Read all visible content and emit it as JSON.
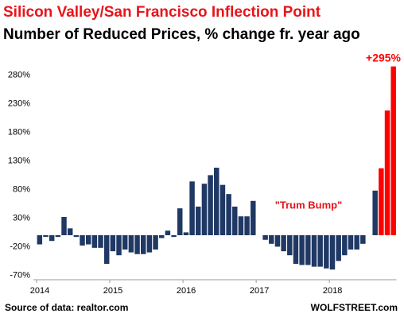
{
  "chart_data": {
    "type": "bar",
    "title": "Silicon Valley/San Francisco Inflection Point",
    "subtitle": "Number of Reduced Prices, % change fr. year ago",
    "source": "Source of data: realtor.com",
    "credit": "WOLFSTREET.com",
    "annotations": [
      "+295%",
      "\"Trum Bump\""
    ],
    "categories": [
      "2014",
      null,
      null,
      null,
      null,
      null,
      null,
      null,
      null,
      null,
      null,
      null,
      "2015",
      null,
      null,
      null,
      null,
      null,
      null,
      null,
      null,
      null,
      null,
      null,
      "2016",
      null,
      null,
      null,
      null,
      null,
      null,
      null,
      null,
      null,
      null,
      null,
      "2017",
      null,
      null,
      null,
      null,
      null,
      null,
      null,
      null,
      null,
      null,
      null,
      "2018",
      null,
      null,
      null,
      null,
      null,
      null,
      null,
      null,
      null,
      null
    ],
    "values": [
      -16,
      -3,
      -10,
      -3,
      32,
      12,
      -3,
      -18,
      -16,
      -22,
      -22,
      -50,
      -28,
      -35,
      -25,
      -30,
      -33,
      -33,
      -30,
      -25,
      -5,
      8,
      -3,
      47,
      5,
      94,
      50,
      90,
      105,
      118,
      88,
      72,
      50,
      33,
      33,
      60,
      0,
      -8,
      -15,
      -20,
      -28,
      -35,
      -50,
      -52,
      -52,
      -55,
      -55,
      -58,
      -60,
      -45,
      -35,
      -25,
      -25,
      -15,
      0,
      78,
      117,
      218,
      295
    ],
    "colors": [
      "#1f3864",
      "#1f3864",
      "#1f3864",
      "#1f3864",
      "#1f3864",
      "#1f3864",
      "#1f3864",
      "#1f3864",
      "#1f3864",
      "#1f3864",
      "#1f3864",
      "#1f3864",
      "#1f3864",
      "#1f3864",
      "#1f3864",
      "#1f3864",
      "#1f3864",
      "#1f3864",
      "#1f3864",
      "#1f3864",
      "#1f3864",
      "#1f3864",
      "#1f3864",
      "#1f3864",
      "#1f3864",
      "#1f3864",
      "#1f3864",
      "#1f3864",
      "#1f3864",
      "#1f3864",
      "#1f3864",
      "#1f3864",
      "#1f3864",
      "#1f3864",
      "#1f3864",
      "#1f3864",
      "#1f3864",
      "#1f3864",
      "#1f3864",
      "#1f3864",
      "#1f3864",
      "#1f3864",
      "#1f3864",
      "#1f3864",
      "#1f3864",
      "#1f3864",
      "#1f3864",
      "#1f3864",
      "#1f3864",
      "#1f3864",
      "#1f3864",
      "#1f3864",
      "#1f3864",
      "#1f3864",
      "#1f3864",
      "#1f3864",
      "#ff0000",
      "#ff0000",
      "#ff0000"
    ],
    "ylim": [
      -75,
      300
    ],
    "yticks": [
      {
        "value": -70,
        "label": "-70%"
      },
      {
        "value": -20,
        "label": "-20%"
      },
      {
        "value": 30,
        "label": "30%"
      },
      {
        "value": 80,
        "label": "80%"
      },
      {
        "value": 130,
        "label": "130%"
      },
      {
        "value": 180,
        "label": "180%"
      },
      {
        "value": 230,
        "label": "230%"
      },
      {
        "value": 280,
        "label": "280%"
      }
    ],
    "grid": false
  }
}
